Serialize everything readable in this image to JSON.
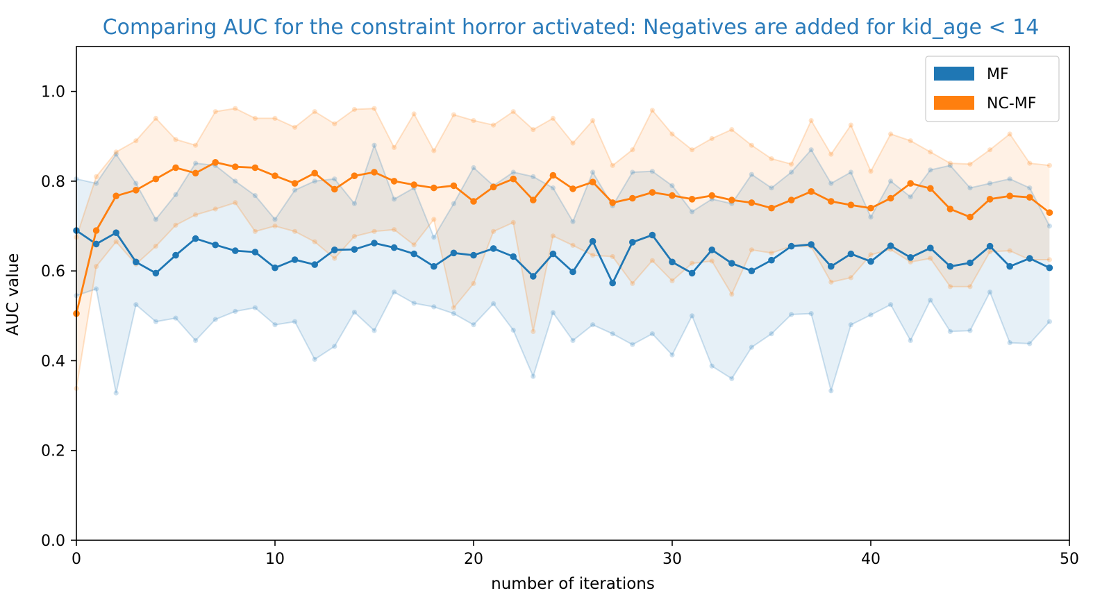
{
  "chart_data": {
    "type": "line",
    "title": "Comparing AUC for the constraint horror activated: Negatives are added for kid_age < 14",
    "xlabel": "number of iterations",
    "ylabel": "AUC value",
    "xlim": [
      0,
      50
    ],
    "ylim": [
      0,
      1.1
    ],
    "xticks": [
      0,
      10,
      20,
      30,
      40,
      50
    ],
    "yticks": [
      0.0,
      0.2,
      0.4,
      0.6,
      0.8,
      1.0
    ],
    "xtick_labels": [
      "0",
      "10",
      "20",
      "30",
      "40",
      "50"
    ],
    "ytick_labels": [
      "0.0",
      "0.2",
      "0.4",
      "0.6",
      "0.8",
      "1.0"
    ],
    "grid": false,
    "legend_position": "top-right",
    "colors": {
      "title": "#2b7bba",
      "MF": "#1f77b4",
      "NC-MF": "#ff7f0e"
    },
    "x": [
      0,
      1,
      2,
      3,
      4,
      5,
      6,
      7,
      8,
      9,
      10,
      11,
      12,
      13,
      14,
      15,
      16,
      17,
      18,
      19,
      20,
      21,
      22,
      23,
      24,
      25,
      26,
      27,
      28,
      29,
      30,
      31,
      32,
      33,
      34,
      35,
      36,
      37,
      38,
      39,
      40,
      41,
      42,
      43,
      44,
      45,
      46,
      47,
      48,
      49
    ],
    "series": [
      {
        "name": "MF",
        "color": "#1f77b4",
        "values": [
          0.69,
          0.66,
          0.685,
          0.62,
          0.595,
          0.635,
          0.672,
          0.658,
          0.645,
          0.642,
          0.607,
          0.625,
          0.614,
          0.647,
          0.648,
          0.662,
          0.652,
          0.638,
          0.61,
          0.64,
          0.635,
          0.65,
          0.632,
          0.588,
          0.638,
          0.598,
          0.666,
          0.573,
          0.664,
          0.68,
          0.62,
          0.595,
          0.647,
          0.617,
          0.6,
          0.624,
          0.655,
          0.659,
          0.61,
          0.638,
          0.621,
          0.656,
          0.63,
          0.651,
          0.61,
          0.618,
          0.655,
          0.61,
          0.628,
          0.607
        ],
        "upper": [
          0.805,
          0.795,
          0.86,
          0.795,
          0.715,
          0.77,
          0.84,
          0.835,
          0.8,
          0.768,
          0.715,
          0.78,
          0.8,
          0.805,
          0.75,
          0.88,
          0.76,
          0.785,
          0.675,
          0.75,
          0.83,
          0.79,
          0.82,
          0.81,
          0.785,
          0.71,
          0.82,
          0.745,
          0.82,
          0.822,
          0.79,
          0.732,
          0.76,
          0.75,
          0.815,
          0.785,
          0.82,
          0.87,
          0.795,
          0.82,
          0.72,
          0.8,
          0.765,
          0.825,
          0.835,
          0.785,
          0.795,
          0.805,
          0.785,
          0.7
        ],
        "lower": [
          0.545,
          0.56,
          0.328,
          0.525,
          0.487,
          0.495,
          0.445,
          0.492,
          0.51,
          0.518,
          0.48,
          0.487,
          0.403,
          0.432,
          0.508,
          0.467,
          0.553,
          0.528,
          0.52,
          0.505,
          0.48,
          0.527,
          0.468,
          0.365,
          0.507,
          0.445,
          0.48,
          0.46,
          0.436,
          0.46,
          0.413,
          0.5,
          0.388,
          0.36,
          0.43,
          0.46,
          0.503,
          0.505,
          0.333,
          0.48,
          0.502,
          0.525,
          0.445,
          0.535,
          0.465,
          0.467,
          0.553,
          0.44,
          0.438,
          0.487
        ]
      },
      {
        "name": "NC-MF",
        "color": "#ff7f0e",
        "values": [
          0.505,
          0.69,
          0.767,
          0.78,
          0.805,
          0.83,
          0.818,
          0.842,
          0.832,
          0.83,
          0.812,
          0.795,
          0.818,
          0.782,
          0.812,
          0.82,
          0.8,
          0.792,
          0.785,
          0.79,
          0.755,
          0.787,
          0.805,
          0.758,
          0.813,
          0.783,
          0.798,
          0.752,
          0.762,
          0.775,
          0.768,
          0.76,
          0.768,
          0.758,
          0.752,
          0.74,
          0.758,
          0.777,
          0.755,
          0.747,
          0.74,
          0.762,
          0.795,
          0.784,
          0.738,
          0.72,
          0.76,
          0.767,
          0.764,
          0.73
        ],
        "upper": [
          0.675,
          0.81,
          0.865,
          0.89,
          0.94,
          0.893,
          0.88,
          0.955,
          0.962,
          0.94,
          0.94,
          0.92,
          0.955,
          0.928,
          0.96,
          0.962,
          0.875,
          0.95,
          0.868,
          0.948,
          0.935,
          0.925,
          0.955,
          0.915,
          0.94,
          0.885,
          0.935,
          0.835,
          0.87,
          0.958,
          0.905,
          0.87,
          0.895,
          0.915,
          0.88,
          0.85,
          0.838,
          0.935,
          0.86,
          0.925,
          0.822,
          0.905,
          0.89,
          0.865,
          0.84,
          0.838,
          0.87,
          0.905,
          0.84,
          0.835
        ],
        "lower": [
          0.338,
          0.61,
          0.665,
          0.615,
          0.655,
          0.702,
          0.725,
          0.738,
          0.752,
          0.688,
          0.7,
          0.688,
          0.665,
          0.628,
          0.677,
          0.688,
          0.692,
          0.658,
          0.715,
          0.518,
          0.572,
          0.688,
          0.708,
          0.465,
          0.678,
          0.657,
          0.635,
          0.632,
          0.572,
          0.623,
          0.578,
          0.617,
          0.622,
          0.548,
          0.647,
          0.64,
          0.655,
          0.654,
          0.575,
          0.585,
          0.636,
          0.648,
          0.62,
          0.628,
          0.565,
          0.565,
          0.643,
          0.645,
          0.625,
          0.625
        ]
      }
    ]
  }
}
